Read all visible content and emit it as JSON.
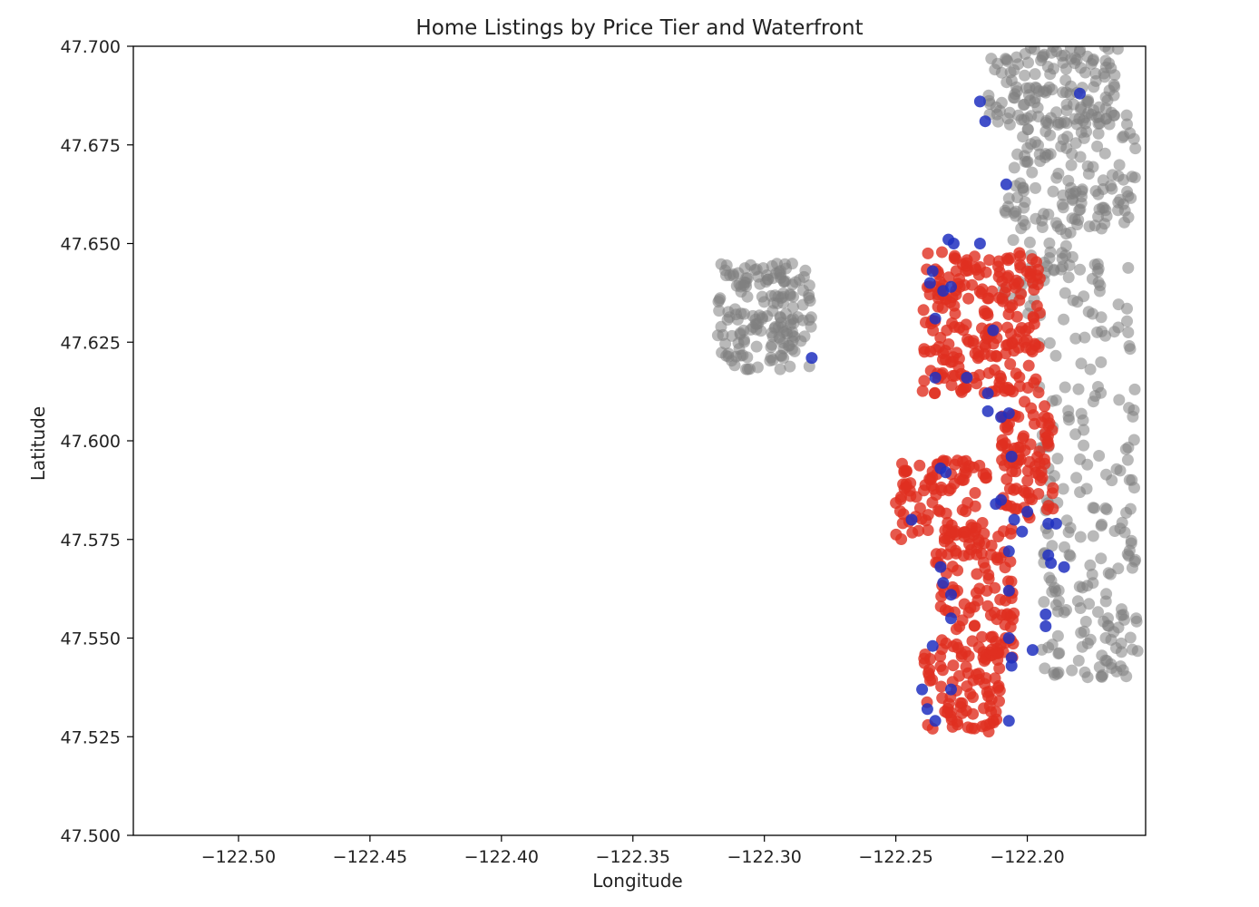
{
  "chart_data": {
    "type": "scatter",
    "title": "Home Listings by Price Tier and Waterfront",
    "xlabel": "Longitude",
    "ylabel": "Latitude",
    "xlim": [
      -122.54,
      -122.155
    ],
    "ylim": [
      47.5,
      47.7
    ],
    "xticks": [
      -122.5,
      -122.45,
      -122.4,
      -122.35,
      -122.3,
      -122.25,
      -122.2
    ],
    "xtick_labels": [
      "−122.50",
      "−122.45",
      "−122.40",
      "−122.35",
      "−122.30",
      "−122.25",
      "−122.20"
    ],
    "yticks": [
      47.5,
      47.525,
      47.55,
      47.575,
      47.6,
      47.625,
      47.65,
      47.675,
      47.7
    ],
    "ytick_labels": [
      "47.500",
      "47.525",
      "47.550",
      "47.575",
      "47.600",
      "47.625",
      "47.650",
      "47.675",
      "47.700"
    ],
    "grid": false,
    "legend": false,
    "series": [
      {
        "color": "#808080",
        "opacity": 0.55,
        "regions": [
          {
            "x": [
              -122.318,
              -122.282
            ],
            "y": [
              47.618,
              47.645
            ],
            "count": 170
          },
          {
            "x": [
              -122.215,
              -122.165
            ],
            "y": [
              47.68,
              47.7
            ],
            "count": 140
          },
          {
            "x": [
              -122.205,
              -122.158
            ],
            "y": [
              47.655,
              47.685
            ],
            "count": 110
          },
          {
            "x": [
              -122.21,
              -122.17
            ],
            "y": [
              47.635,
              47.665
            ],
            "count": 60
          },
          {
            "x": [
              -122.2,
              -122.158
            ],
            "y": [
              47.61,
              47.65
            ],
            "count": 45
          },
          {
            "x": [
              -122.195,
              -122.158
            ],
            "y": [
              47.58,
              47.615
            ],
            "count": 55
          },
          {
            "x": [
              -122.195,
              -122.158
            ],
            "y": [
              47.54,
              47.58
            ],
            "count": 110
          }
        ]
      },
      {
        "color": "#e03020",
        "opacity": 0.8,
        "regions": [
          {
            "x": [
              -122.24,
              -122.195
            ],
            "y": [
              47.612,
              47.648
            ],
            "count": 230
          },
          {
            "x": [
              -122.21,
              -122.19
            ],
            "y": [
              47.58,
              47.61
            ],
            "count": 90
          },
          {
            "x": [
              -122.25,
              -122.215
            ],
            "y": [
              47.575,
              47.595
            ],
            "count": 90
          },
          {
            "x": [
              -122.235,
              -122.205
            ],
            "y": [
              47.545,
              47.578
            ],
            "count": 120
          },
          {
            "x": [
              -122.24,
              -122.21
            ],
            "y": [
              47.525,
              47.548
            ],
            "count": 85
          }
        ]
      },
      {
        "color": "#2030c0",
        "opacity": 0.85,
        "points": [
          [
            -122.236,
            47.643
          ],
          [
            -122.237,
            47.64
          ],
          [
            -122.232,
            47.638
          ],
          [
            -122.229,
            47.639
          ],
          [
            -122.23,
            47.651
          ],
          [
            -122.228,
            47.65
          ],
          [
            -122.218,
            47.65
          ],
          [
            -122.235,
            47.631
          ],
          [
            -122.235,
            47.616
          ],
          [
            -122.215,
            47.612
          ],
          [
            -122.213,
            47.628
          ],
          [
            -122.21,
            47.606
          ],
          [
            -122.207,
            47.607
          ],
          [
            -122.206,
            47.596
          ],
          [
            -122.2,
            47.582
          ],
          [
            -122.205,
            47.58
          ],
          [
            -122.233,
            47.593
          ],
          [
            -122.231,
            47.592
          ],
          [
            -122.21,
            47.585
          ],
          [
            -122.212,
            47.584
          ],
          [
            -122.244,
            47.58
          ],
          [
            -122.202,
            47.577
          ],
          [
            -122.207,
            47.572
          ],
          [
            -122.233,
            47.568
          ],
          [
            -122.232,
            47.564
          ],
          [
            -122.229,
            47.561
          ],
          [
            -122.229,
            47.555
          ],
          [
            -122.207,
            47.562
          ],
          [
            -122.207,
            47.55
          ],
          [
            -122.206,
            47.543
          ],
          [
            -122.206,
            47.545
          ],
          [
            -122.236,
            47.548
          ],
          [
            -122.24,
            47.537
          ],
          [
            -122.229,
            47.537
          ],
          [
            -122.238,
            47.532
          ],
          [
            -122.235,
            47.529
          ],
          [
            -122.207,
            47.529
          ],
          [
            -122.192,
            47.579
          ],
          [
            -122.189,
            47.579
          ],
          [
            -122.192,
            47.571
          ],
          [
            -122.191,
            47.569
          ],
          [
            -122.186,
            47.568
          ],
          [
            -122.193,
            47.556
          ],
          [
            -122.193,
            47.553
          ],
          [
            -122.198,
            47.547
          ],
          [
            -122.218,
            47.686
          ],
          [
            -122.216,
            47.681
          ],
          [
            -122.208,
            47.665
          ],
          [
            -122.18,
            47.688
          ],
          [
            -122.282,
            47.621
          ],
          [
            -122.223,
            47.616
          ],
          [
            -122.215,
            47.6075
          ]
        ]
      }
    ]
  }
}
